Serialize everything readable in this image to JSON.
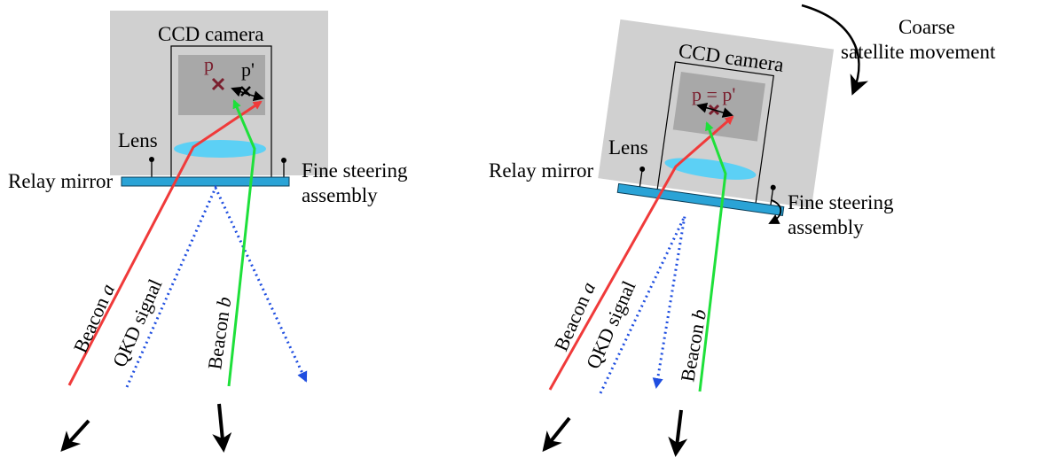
{
  "left": {
    "camera": "CCD camera",
    "point_p": "p",
    "point_p_prime": "p'",
    "lens": "Lens",
    "relay_mirror": "Relay mirror",
    "fine_steering_1": "Fine steering",
    "fine_steering_2": "assembly",
    "beacon_a": "Beacon ",
    "beacon_a_italic": "a",
    "qkd": "QKD signal",
    "beacon_b": "Beacon ",
    "beacon_b_italic": "b"
  },
  "right": {
    "coarse_1": "Coarse",
    "coarse_2": "satellite movement",
    "camera": "CCD camera",
    "point_eq": "p = p'",
    "lens": "Lens",
    "relay_mirror": "Relay mirror",
    "fine_steering_1": "Fine steering",
    "fine_steering_2": "assembly",
    "beacon_a": "Beacon ",
    "beacon_a_italic": "a",
    "qkd": "QKD signal",
    "beacon_b": "Beacon ",
    "beacon_b_italic": "b"
  },
  "colors": {
    "housing": "#d0d0d0",
    "sensor": "#a8a8a8",
    "lens": "#5cd0f5",
    "mirror": "#2aa3d6",
    "beacon_a": "#f03a3a",
    "beacon_b": "#1ee03a",
    "qkd": "#1f4ee0",
    "marker": "#7a1f2e"
  }
}
